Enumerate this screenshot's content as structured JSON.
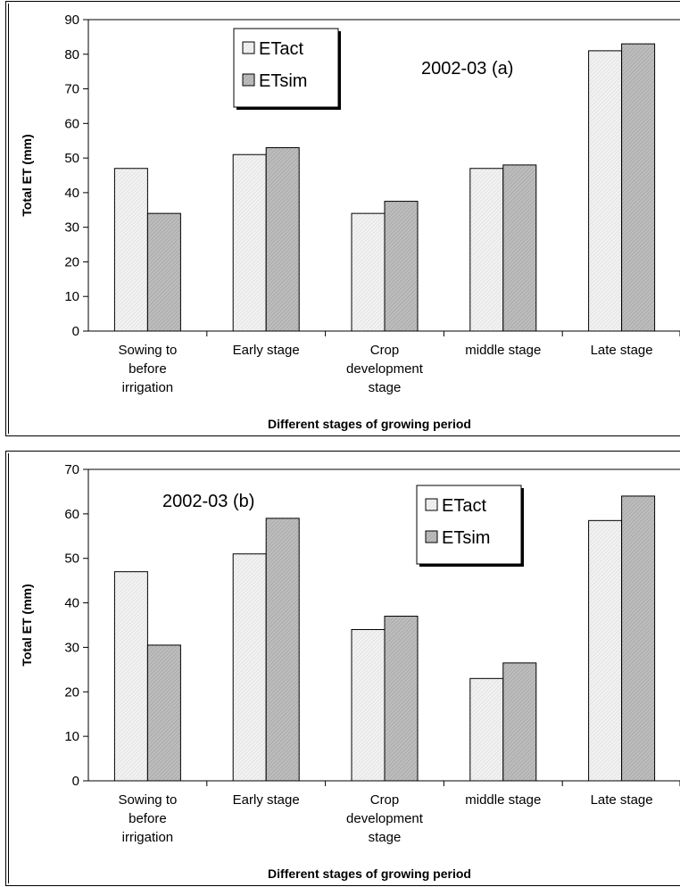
{
  "colors": {
    "etact": "#f2f2f2",
    "etsim": "#bdbdbd",
    "axis": "#000000"
  },
  "chart_data": [
    {
      "type": "bar",
      "annotation": "2002-03 (a)",
      "categories": [
        [
          "Sowing to",
          "before",
          "irrigation"
        ],
        [
          "Early stage"
        ],
        [
          "Crop",
          "development",
          "stage"
        ],
        [
          "middle stage"
        ],
        [
          "Late stage"
        ]
      ],
      "series": [
        {
          "name": "ETact",
          "values": [
            47,
            51,
            34,
            47,
            81
          ]
        },
        {
          "name": "ETsim",
          "values": [
            34,
            53,
            37.5,
            48,
            83
          ]
        }
      ],
      "xlabel": "Different stages of growing period",
      "ylabel": "Total ET (mm)",
      "ylim": [
        0,
        90
      ],
      "yticks": [
        0,
        10,
        20,
        30,
        40,
        50,
        60,
        70,
        80,
        90
      ],
      "legend": "top-center",
      "grid": false
    },
    {
      "type": "bar",
      "annotation": "2002-03 (b)",
      "categories": [
        [
          "Sowing to",
          "before",
          "irrigation"
        ],
        [
          "Early stage"
        ],
        [
          "Crop",
          "development",
          "stage"
        ],
        [
          "middle stage"
        ],
        [
          "Late stage"
        ]
      ],
      "series": [
        {
          "name": "ETact",
          "values": [
            47,
            51,
            34,
            23,
            58.5
          ]
        },
        {
          "name": "ETsim",
          "values": [
            30.5,
            59,
            37,
            26.5,
            64
          ]
        }
      ],
      "xlabel": "Different stages of growing period",
      "ylabel": "Total ET (mm)",
      "ylim": [
        0,
        70
      ],
      "yticks": [
        0,
        10,
        20,
        30,
        40,
        50,
        60,
        70
      ],
      "legend": "top-right",
      "grid": false
    }
  ]
}
